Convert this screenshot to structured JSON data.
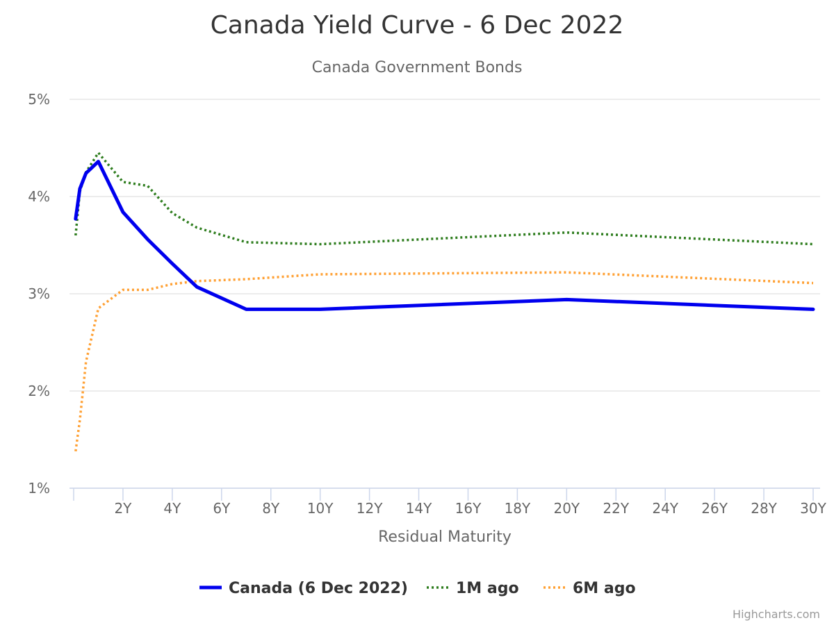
{
  "chart_data": {
    "type": "line",
    "title": "Canada Yield Curve - 6 Dec 2022",
    "subtitle": "Canada Government Bonds",
    "xlabel": "Residual Maturity",
    "ylabel": "",
    "xlim": [
      0,
      30
    ],
    "ylim": [
      1,
      5
    ],
    "x_ticks": [
      2,
      4,
      6,
      8,
      10,
      12,
      14,
      16,
      18,
      20,
      22,
      24,
      26,
      28,
      30
    ],
    "x_tick_labels": [
      "2Y",
      "4Y",
      "6Y",
      "8Y",
      "10Y",
      "12Y",
      "14Y",
      "16Y",
      "18Y",
      "20Y",
      "22Y",
      "24Y",
      "26Y",
      "28Y",
      "30Y"
    ],
    "y_ticks": [
      1,
      2,
      3,
      4,
      5
    ],
    "y_tick_labels": [
      "1%",
      "2%",
      "3%",
      "4%",
      "5%"
    ],
    "grid": true,
    "legend_position": "bottom-center",
    "credits": "Highcharts.com",
    "series": [
      {
        "name": "Canada (6 Dec 2022)",
        "color": "#0000ee",
        "style": "solid",
        "x": [
          0.08,
          0.25,
          0.5,
          1,
          2,
          3,
          4,
          5,
          7,
          10,
          20,
          30
        ],
        "y": [
          3.77,
          4.08,
          4.24,
          4.36,
          3.84,
          3.56,
          3.31,
          3.07,
          2.84,
          2.84,
          2.94,
          2.84
        ]
      },
      {
        "name": "1M ago",
        "color": "#2e7d1e",
        "style": "dotted",
        "x": [
          0.08,
          0.25,
          0.5,
          1,
          2,
          3,
          4,
          5,
          7,
          10,
          20,
          30
        ],
        "y": [
          3.6,
          4.05,
          4.25,
          4.45,
          4.15,
          4.11,
          3.83,
          3.68,
          3.53,
          3.51,
          3.63,
          3.51
        ]
      },
      {
        "name": "6M ago",
        "color": "#ffa033",
        "style": "dotted",
        "x": [
          0.08,
          0.25,
          0.5,
          1,
          2,
          3,
          4,
          5,
          7,
          10,
          20,
          30
        ],
        "y": [
          1.38,
          1.7,
          2.3,
          2.85,
          3.04,
          3.04,
          3.1,
          3.13,
          3.15,
          3.2,
          3.22,
          3.11
        ]
      }
    ]
  }
}
